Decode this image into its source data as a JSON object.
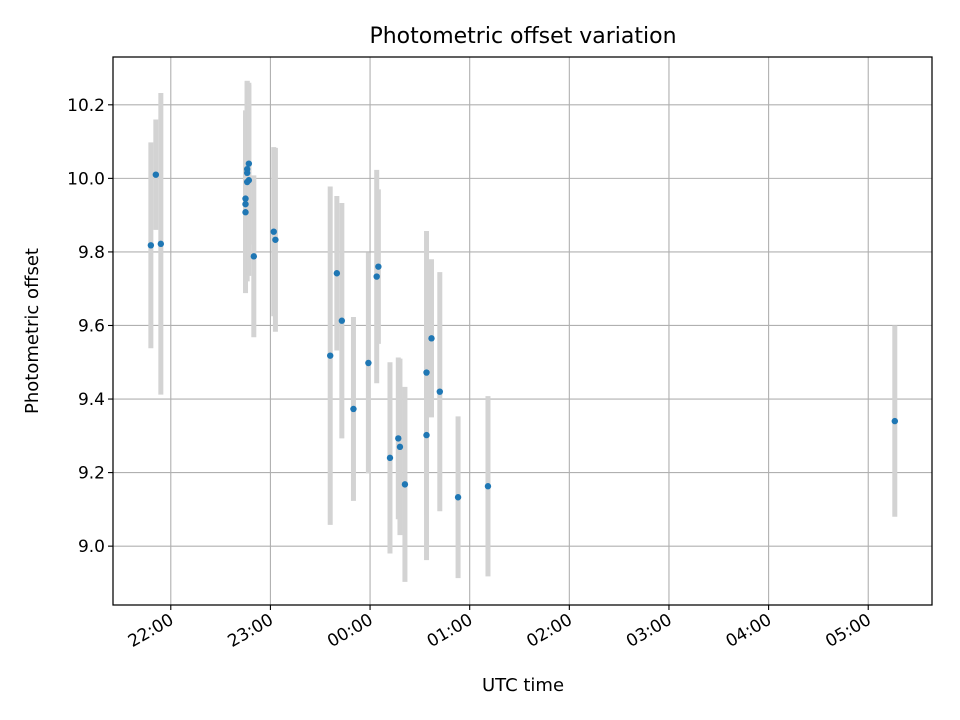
{
  "chart_data": {
    "type": "scatter",
    "title": "Photometric offset variation",
    "xlabel": "UTC time",
    "ylabel": "Photometric offset",
    "grid": true,
    "xlim_hours": [
      21.42,
      29.64
    ],
    "ylim": [
      8.84,
      10.33
    ],
    "x_ticks": [
      "22:00",
      "23:00",
      "00:00",
      "01:00",
      "02:00",
      "03:00",
      "04:00",
      "05:00"
    ],
    "y_ticks": [
      "9.0",
      "9.2",
      "9.4",
      "9.6",
      "9.8",
      "10.0",
      "10.2"
    ],
    "series": [
      {
        "marker_color": "#1f77b4",
        "errorbar_color": "#d3d3d3",
        "points": [
          {
            "time": "21:48",
            "y": 9.818,
            "err": 0.28
          },
          {
            "time": "21:51",
            "y": 10.01,
            "err": 0.15
          },
          {
            "time": "21:54",
            "y": 9.822,
            "err": 0.41
          },
          {
            "time": "22:45",
            "y": 9.908,
            "err": 0.22
          },
          {
            "time": "22:45",
            "y": 9.93,
            "err": 0.24
          },
          {
            "time": "22:45",
            "y": 9.945,
            "err": 0.24
          },
          {
            "time": "22:46",
            "y": 9.99,
            "err": 0.27
          },
          {
            "time": "22:46",
            "y": 10.015,
            "err": 0.25
          },
          {
            "time": "22:46",
            "y": 10.025,
            "err": 0.24
          },
          {
            "time": "22:47",
            "y": 10.04,
            "err": 0.22
          },
          {
            "time": "22:47",
            "y": 9.995,
            "err": 0.26
          },
          {
            "time": "22:50",
            "y": 9.788,
            "err": 0.22
          },
          {
            "time": "23:02",
            "y": 9.855,
            "err": 0.23
          },
          {
            "time": "23:03",
            "y": 9.833,
            "err": 0.25
          },
          {
            "time": "23:36",
            "y": 9.518,
            "err": 0.46
          },
          {
            "time": "23:40",
            "y": 9.742,
            "err": 0.21
          },
          {
            "time": "23:43",
            "y": 9.613,
            "err": 0.32
          },
          {
            "time": "23:50",
            "y": 9.373,
            "err": 0.25
          },
          {
            "time": "23:59",
            "y": 9.498,
            "err": 0.3
          },
          {
            "time": "00:04",
            "y": 9.733,
            "err": 0.29
          },
          {
            "time": "00:05",
            "y": 9.76,
            "err": 0.21
          },
          {
            "time": "00:12",
            "y": 9.24,
            "err": 0.26
          },
          {
            "time": "00:17",
            "y": 9.293,
            "err": 0.22
          },
          {
            "time": "00:18",
            "y": 9.27,
            "err": 0.24
          },
          {
            "time": "00:21",
            "y": 9.168,
            "err": 0.265
          },
          {
            "time": "00:34",
            "y": 9.302,
            "err": 0.34
          },
          {
            "time": "00:34",
            "y": 9.472,
            "err": 0.385
          },
          {
            "time": "00:37",
            "y": 9.565,
            "err": 0.215
          },
          {
            "time": "00:42",
            "y": 9.42,
            "err": 0.325
          },
          {
            "time": "00:53",
            "y": 9.133,
            "err": 0.22
          },
          {
            "time": "01:11",
            "y": 9.163,
            "err": 0.245
          },
          {
            "time": "05:16",
            "y": 9.34,
            "err": 0.26
          }
        ]
      }
    ]
  }
}
